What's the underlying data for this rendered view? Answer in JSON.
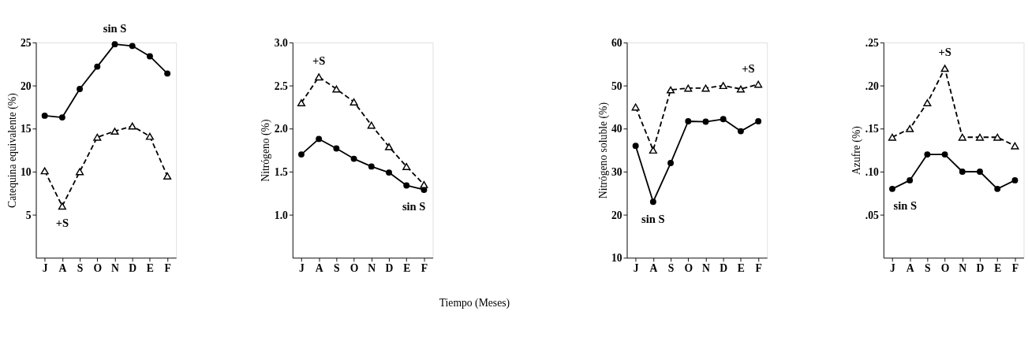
{
  "chart_data": [
    {
      "type": "line",
      "ylabel": "Catequina equivalente (%)",
      "categories": [
        "J",
        "A",
        "S",
        "O",
        "N",
        "D",
        "E",
        "F"
      ],
      "ylim": [
        0,
        25
      ],
      "yticks": [
        5,
        10,
        15,
        20,
        25
      ],
      "grid": false,
      "legend": false,
      "series": [
        {
          "name": "sin S",
          "color": "#000000",
          "marker": "circle",
          "line_style": "solid",
          "values": [
            16.5,
            16.3,
            19.6,
            22.2,
            24.8,
            24.6,
            23.4,
            21.4
          ]
        },
        {
          "name": "+S",
          "color": "#000000",
          "marker": "triangle",
          "line_style": "dashed",
          "values": [
            10.1,
            6.0,
            10.0,
            14.0,
            14.7,
            15.3,
            14.1,
            9.5
          ]
        }
      ]
    },
    {
      "type": "line",
      "ylabel": "Nitrógeno (%)",
      "xlabel": "Tiempo    (Meses)",
      "categories": [
        "J",
        "A",
        "S",
        "O",
        "N",
        "D",
        "E",
        "F"
      ],
      "ylim": [
        0.5,
        3.0
      ],
      "yticks": [
        {
          "value": 1.0,
          "label": "1.0"
        },
        {
          "value": 1.5,
          "label": "1.5"
        },
        {
          "value": 2.0,
          "label": "2.0"
        },
        {
          "value": 2.5,
          "label": "2.5"
        },
        {
          "value": 3.0,
          "label": "3.0"
        }
      ],
      "grid": false,
      "legend": false,
      "series": [
        {
          "name": "sin S",
          "color": "#000000",
          "marker": "circle",
          "line_style": "solid",
          "values": [
            1.7,
            1.88,
            1.77,
            1.65,
            1.56,
            1.49,
            1.34,
            1.29
          ]
        },
        {
          "name": "+S",
          "color": "#000000",
          "marker": "triangle",
          "line_style": "dashed",
          "values": [
            2.3,
            2.6,
            2.46,
            2.31,
            2.04,
            1.79,
            1.56,
            1.35
          ]
        }
      ]
    },
    {
      "type": "line",
      "ylabel": "Nitrógeno soluble (%)",
      "categories": [
        "J",
        "A",
        "S",
        "O",
        "N",
        "D",
        "E",
        "F"
      ],
      "ylim": [
        10,
        60
      ],
      "yticks": [
        10,
        20,
        30,
        40,
        50,
        60
      ],
      "grid": false,
      "legend": false,
      "series": [
        {
          "name": "sin S",
          "color": "#000000",
          "marker": "circle",
          "line_style": "solid",
          "values": [
            36,
            23,
            32,
            41.7,
            41.6,
            42.2,
            39.4,
            41.7
          ]
        },
        {
          "name": "+S",
          "color": "#000000",
          "marker": "triangle",
          "line_style": "dashed",
          "values": [
            45,
            35,
            49,
            49.4,
            49.4,
            50,
            49.2,
            50.3
          ]
        }
      ]
    },
    {
      "type": "line",
      "ylabel": "Azufre (%)",
      "categories": [
        "J",
        "A",
        "S",
        "O",
        "N",
        "D",
        "E",
        "F"
      ],
      "ylim": [
        0,
        0.25
      ],
      "yticks": [
        {
          "value": 0.05,
          "label": ".05"
        },
        {
          "value": 0.1,
          "label": ".10"
        },
        {
          "value": 0.15,
          "label": ".15"
        },
        {
          "value": 0.2,
          "label": ".20"
        },
        {
          "value": 0.25,
          "label": ".25"
        }
      ],
      "grid": false,
      "legend": false,
      "series": [
        {
          "name": "sin S",
          "color": "#000000",
          "marker": "circle",
          "line_style": "solid",
          "values": [
            0.08,
            0.09,
            0.12,
            0.12,
            0.1,
            0.1,
            0.08,
            0.09
          ]
        },
        {
          "name": "+S",
          "color": "#000000",
          "marker": "triangle",
          "line_style": "dashed",
          "values": [
            0.14,
            0.15,
            0.18,
            0.22,
            0.14,
            0.14,
            0.14,
            0.13
          ]
        }
      ]
    }
  ]
}
